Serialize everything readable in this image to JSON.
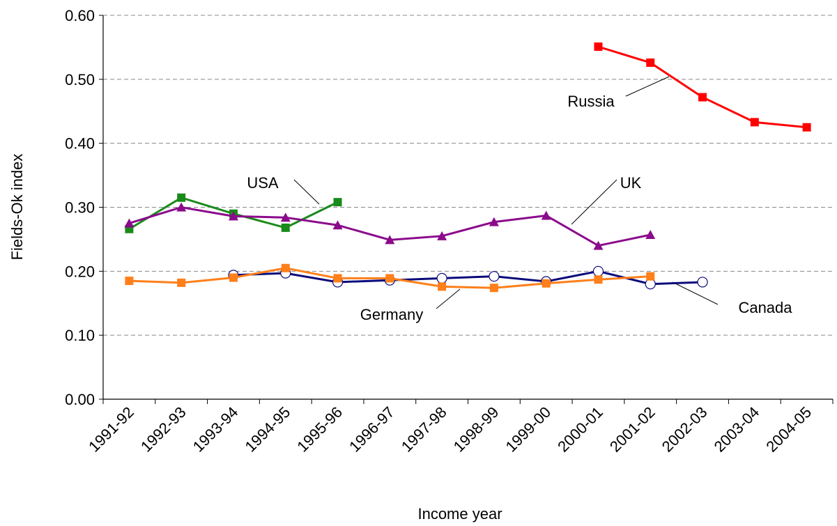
{
  "chart_data": {
    "type": "line",
    "x_label": "Income year",
    "y_label": "Fields-Ok index",
    "categories": [
      "1991-92",
      "1992-93",
      "1993-94",
      "1994-95",
      "1995-96",
      "1996-97",
      "1997-98",
      "1998-99",
      "1999-00",
      "2000-01",
      "2001-02",
      "2002-03",
      "2003-04",
      "2004-05"
    ],
    "ylim": [
      0,
      0.6
    ],
    "yticks": [
      {
        "value": 0,
        "label": "0.00"
      },
      {
        "value": 0.1,
        "label": "0.10"
      },
      {
        "value": 0.2,
        "label": "0.20"
      },
      {
        "value": 0.3,
        "label": "0.30"
      },
      {
        "value": 0.4,
        "label": "0.40"
      },
      {
        "value": 0.5,
        "label": "0.50"
      },
      {
        "value": 0.6,
        "label": "0.60"
      }
    ],
    "grid": true,
    "series": [
      {
        "name": "USA",
        "color": "#1a8a1a",
        "marker": "square",
        "values": [
          0.266,
          0.315,
          0.29,
          0.268,
          0.308,
          null,
          null,
          null,
          null,
          null,
          null,
          null,
          null,
          null
        ]
      },
      {
        "name": "UK",
        "color": "#8b0a8b",
        "marker": "triangle",
        "values": [
          0.275,
          0.3,
          0.286,
          0.284,
          0.272,
          0.249,
          0.255,
          0.277,
          0.287,
          0.24,
          0.257,
          null,
          null,
          null
        ]
      },
      {
        "name": "Canada",
        "color": "#0a0a7a",
        "marker": "open-circle",
        "values": [
          null,
          null,
          0.194,
          0.197,
          0.183,
          0.186,
          0.189,
          0.192,
          0.184,
          0.2,
          0.18,
          0.183,
          null,
          null
        ]
      },
      {
        "name": "Germany",
        "color": "#ff7f1a",
        "marker": "square",
        "values": [
          0.185,
          0.182,
          0.19,
          0.205,
          0.189,
          0.189,
          0.176,
          0.174,
          0.181,
          0.187,
          0.192,
          null,
          null,
          null
        ]
      },
      {
        "name": "Russia",
        "color": "#ff0000",
        "marker": "square",
        "values": [
          null,
          null,
          null,
          null,
          null,
          null,
          null,
          null,
          null,
          0.551,
          0.526,
          0.472,
          0.433,
          0.425
        ]
      }
    ]
  }
}
